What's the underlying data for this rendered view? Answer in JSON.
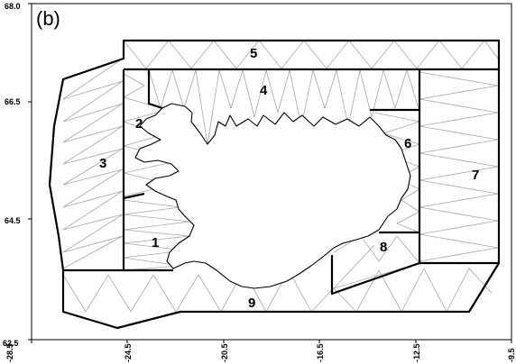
{
  "panel_label": "(b)",
  "x_ticks": [
    "-28.5",
    "-24.5",
    "-20.5",
    "-16.5",
    "-12.5",
    "-9.5"
  ],
  "y_ticks": [
    "68.0",
    "66.5",
    "64.5",
    "62.5"
  ],
  "regions": [
    "1",
    "2",
    "3",
    "4",
    "5",
    "6",
    "7",
    "8",
    "9"
  ],
  "colors": {
    "frame": "#000000",
    "triangle_lines": "#a8a8a8",
    "block_outline": "#000000",
    "land_fill": "#ffffff"
  }
}
